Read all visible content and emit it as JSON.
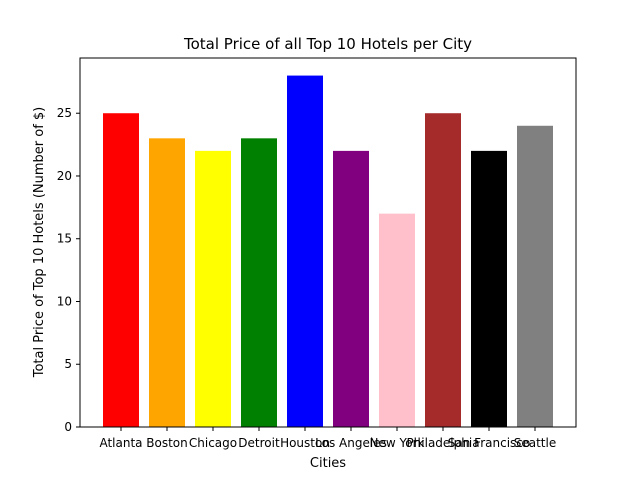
{
  "chart_data": {
    "type": "bar",
    "title": "Total Price of all Top 10 Hotels per City",
    "xlabel": "Cities",
    "ylabel": "Total Price of Top 10 Hotels (Number of $)",
    "categories": [
      "Atlanta",
      "Boston",
      "Chicago",
      "Detroit",
      "Houston",
      "Los Angeles",
      "New York",
      "Philadelphia",
      "San Francisco",
      "Seattle"
    ],
    "values": [
      25,
      23,
      22,
      23,
      28,
      22,
      17,
      25,
      22,
      24
    ],
    "colors": [
      "#ff0000",
      "#ffa500",
      "#ffff00",
      "#008000",
      "#0000ff",
      "#800080",
      "#ffc0cb",
      "#a52a2a",
      "#000000",
      "#808080"
    ],
    "ylim": [
      0,
      29.4
    ],
    "yticks": [
      "0",
      "5",
      "10",
      "15",
      "20",
      "25"
    ],
    "grid": false,
    "legend": "none"
  }
}
